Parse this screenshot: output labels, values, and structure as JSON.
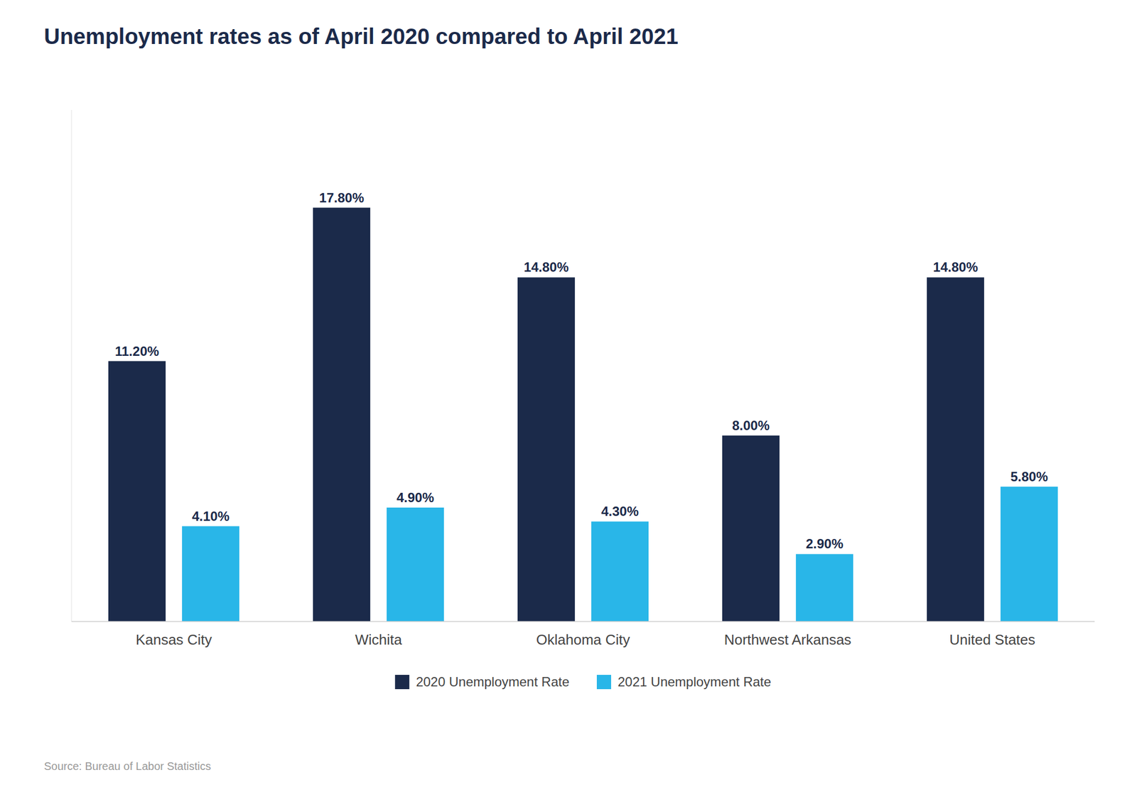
{
  "chart_data": {
    "type": "bar",
    "title": "Unemployment rates as of April 2020 compared to April 2021",
    "categories": [
      "Kansas City",
      "Wichita",
      "Oklahoma City",
      "Northwest Arkansas",
      "United States"
    ],
    "series": [
      {
        "name": "2020 Unemployment Rate",
        "color": "#1B2A4A",
        "values": [
          11.2,
          17.8,
          14.8,
          8.0,
          14.8
        ],
        "value_labels": [
          "11.20%",
          "17.80%",
          "14.80%",
          "8.00%",
          "14.80%"
        ]
      },
      {
        "name": "2021 Unemployment Rate",
        "color": "#29B6E8",
        "values": [
          4.1,
          4.9,
          4.3,
          2.9,
          5.8
        ],
        "value_labels": [
          "4.10%",
          "4.90%",
          "4.30%",
          "2.90%",
          "5.80%"
        ]
      }
    ],
    "ylim": [
      0,
      22
    ],
    "grid": false,
    "legend": "bottom",
    "data_labels": true,
    "tick_labels": "x",
    "annotations": [
      "Source: Bureau of Labor Statistics"
    ]
  }
}
